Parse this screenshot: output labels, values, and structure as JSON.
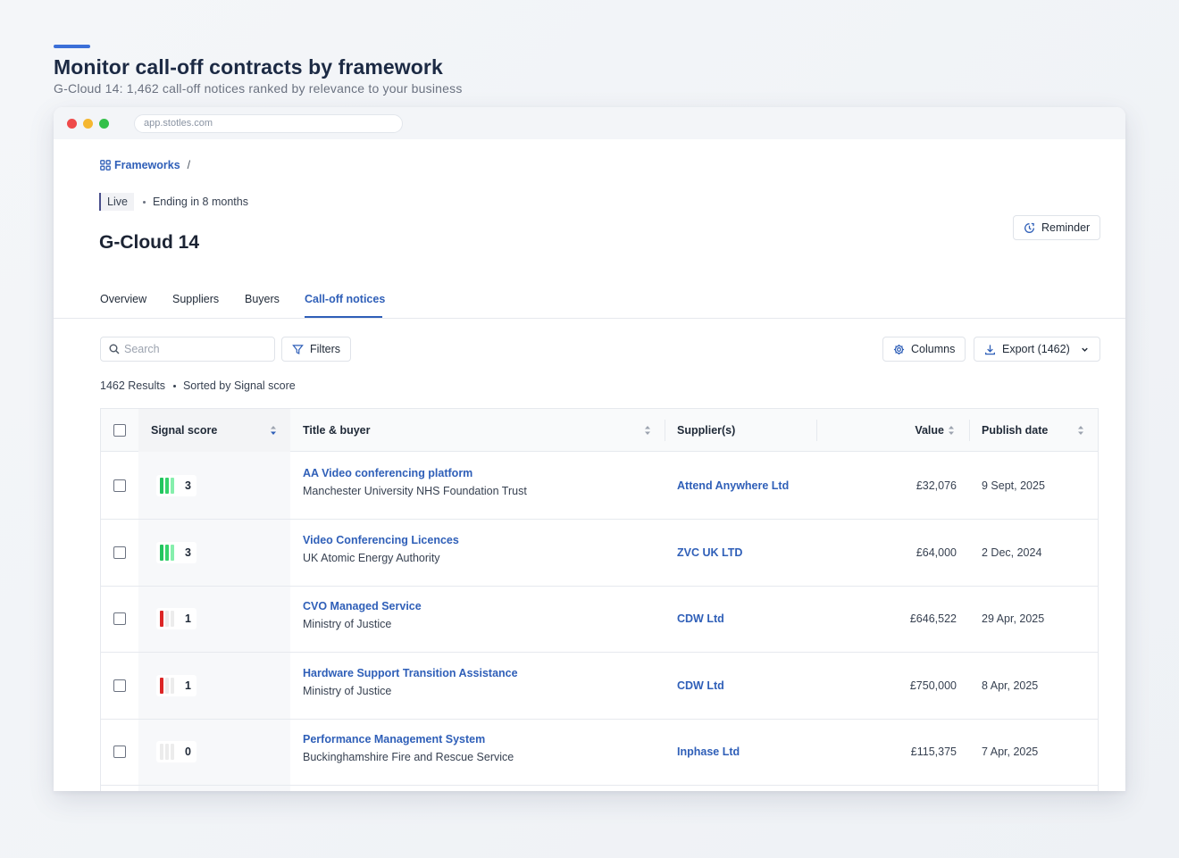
{
  "hero": {
    "title": "Monitor call-off contracts by framework",
    "subtitle": "G-Cloud 14: 1,462 call-off notices ranked by relevance to your business"
  },
  "browser": {
    "url": "app.stotles.com"
  },
  "breadcrumb": {
    "link": "Frameworks",
    "separator": "/"
  },
  "status": {
    "tag": "Live",
    "ending": "Ending in 8 months"
  },
  "page": {
    "title": "G-Cloud 14"
  },
  "actions": {
    "reminder": "Reminder",
    "columns": "Columns",
    "export": "Export (1462)",
    "filters": "Filters"
  },
  "search": {
    "placeholder": "Search"
  },
  "tabs": [
    {
      "label": "Overview"
    },
    {
      "label": "Suppliers"
    },
    {
      "label": "Buyers"
    },
    {
      "label": "Call-off notices"
    }
  ],
  "results": {
    "count": "1462 Results",
    "sort": "Sorted by Signal score"
  },
  "table": {
    "columns": {
      "signal": "Signal score",
      "title": "Title & buyer",
      "suppliers": "Supplier(s)",
      "value": "Value",
      "date": "Publish date"
    },
    "rows": [
      {
        "score": 3,
        "score_label": "3",
        "title": "AA Video conferencing platform",
        "buyer": "Manchester University NHS Foundation Trust",
        "supplier": "Attend Anywhere Ltd",
        "value": "£32,076",
        "date": "9 Sept, 2025"
      },
      {
        "score": 3,
        "score_label": "3",
        "title": "Video Conferencing Licences",
        "buyer": "UK Atomic Energy Authority",
        "supplier": "ZVC UK LTD",
        "value": "£64,000",
        "date": "2 Dec, 2024"
      },
      {
        "score": 1,
        "score_label": "1",
        "title": "CVO Managed Service",
        "buyer": "Ministry of Justice",
        "supplier": "CDW Ltd",
        "value": "£646,522",
        "date": "29 Apr, 2025"
      },
      {
        "score": 1,
        "score_label": "1",
        "title": "Hardware Support Transition Assistance",
        "buyer": "Ministry of Justice",
        "supplier": "CDW Ltd",
        "value": "£750,000",
        "date": "8 Apr, 2025"
      },
      {
        "score": 0,
        "score_label": "0",
        "title": "Performance Management System",
        "buyer": "Buckinghamshire Fire and Rescue Service",
        "supplier": "Inphase Ltd",
        "value": "£115,375",
        "date": "7 Apr, 2025"
      }
    ]
  },
  "colors": {
    "accent": "#2f5fb8",
    "score_high": [
      "#22c55e",
      "#34d36b",
      "#86efac"
    ],
    "score_low": "#dc2626",
    "score_empty": "#ececec"
  }
}
